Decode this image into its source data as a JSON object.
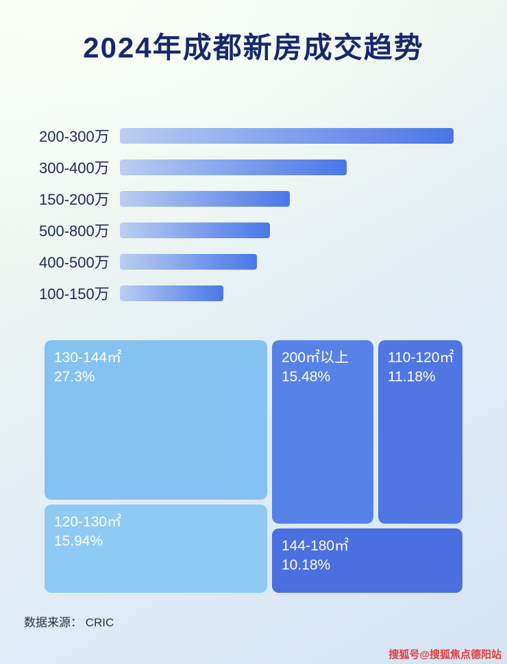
{
  "page": {
    "title": "2024年成都新房成交趋势",
    "source": "数据来源： CRIC",
    "watermark": "搜狐号@搜狐焦点德阳站"
  },
  "colors": {
    "title": "#17286b",
    "bar_gradient_start": "#b9cff1",
    "bar_gradient_end": "#4a77e6",
    "block_light_1": "#85c2f2",
    "block_light_2": "#8ecaf4",
    "block_medium_1": "#5682e8",
    "block_medium_2": "#5076e3",
    "block_dark": "#4b6fdf",
    "watermark_red": "#e23b3b"
  },
  "chart_data": [
    {
      "type": "bar",
      "orientation": "horizontal",
      "title": "2024年成都新房成交趋势",
      "categories": [
        "200-300万",
        "300-400万",
        "150-200万",
        "500-800万",
        "400-500万",
        "100-150万"
      ],
      "values": [
        100,
        68,
        51,
        45,
        41,
        31
      ],
      "value_unit": "relative length, % of longest bar (no numeric labels shown)",
      "grid": false,
      "legend": false
    },
    {
      "type": "treemap",
      "items": [
        {
          "label": "130-144㎡",
          "pct": "27.3%",
          "value": 27.3,
          "color": "#85c2f2"
        },
        {
          "label": "200㎡以上",
          "pct": "15.48%",
          "value": 15.48,
          "color": "#5682e8"
        },
        {
          "label": "110-120㎡",
          "pct": "11.18%",
          "value": 11.18,
          "color": "#5076e3"
        },
        {
          "label": "120-130㎡",
          "pct": "15.94%",
          "value": 15.94,
          "color": "#8ecaf4"
        },
        {
          "label": "144-180㎡",
          "pct": "10.18%",
          "value": 10.18,
          "color": "#4b6fdf"
        }
      ]
    }
  ]
}
